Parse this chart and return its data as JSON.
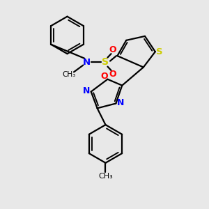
{
  "bg_color": "#e8e8e8",
  "bond_color": "#000000",
  "bond_width": 1.6,
  "N_color": "#0000ff",
  "S_color": "#cccc00",
  "O_color": "#ff0000",
  "figsize": [
    3.0,
    3.0
  ],
  "dpi": 100,
  "xlim": [
    0,
    10
  ],
  "ylim": [
    0,
    10
  ]
}
